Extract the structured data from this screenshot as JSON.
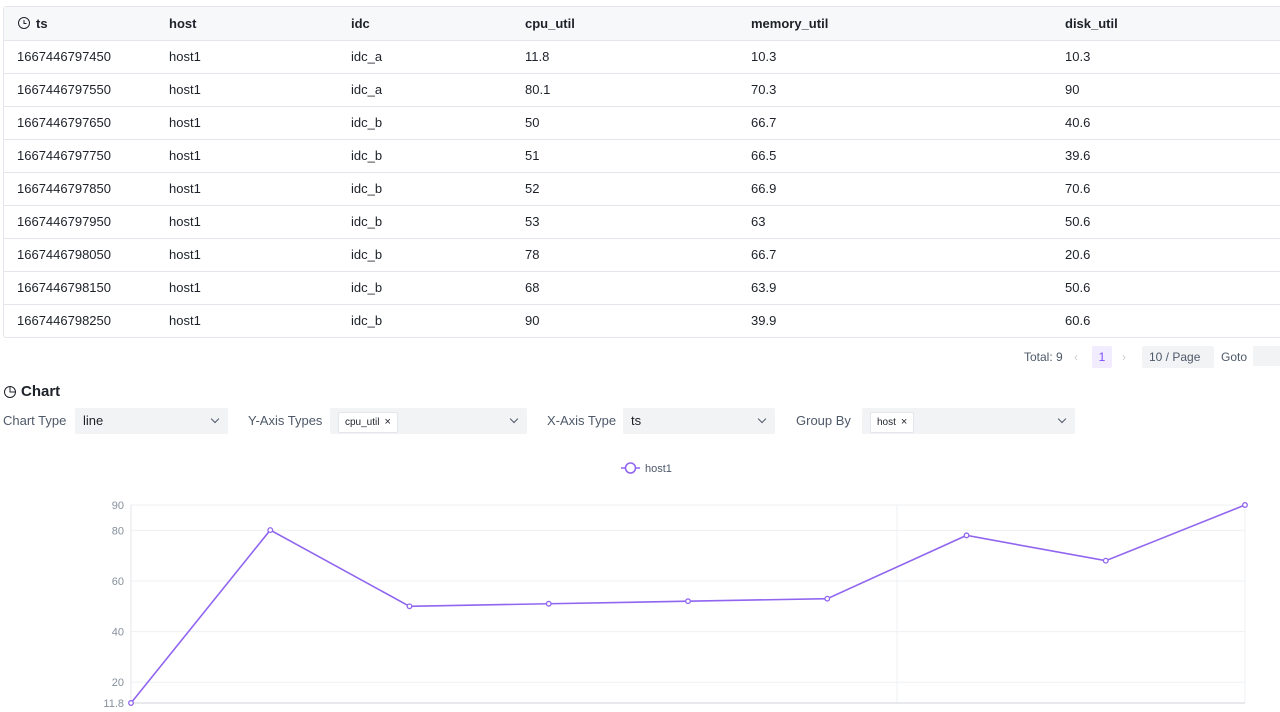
{
  "table": {
    "columns": [
      "ts",
      "host",
      "idc",
      "cpu_util",
      "memory_util",
      "disk_util"
    ],
    "rows": [
      [
        1667446797450,
        "host1",
        "idc_a",
        11.8,
        10.3,
        10.3
      ],
      [
        1667446797550,
        "host1",
        "idc_a",
        80.1,
        70.3,
        90
      ],
      [
        1667446797650,
        "host1",
        "idc_b",
        50,
        66.7,
        40.6
      ],
      [
        1667446797750,
        "host1",
        "idc_b",
        51,
        66.5,
        39.6
      ],
      [
        1667446797850,
        "host1",
        "idc_b",
        52,
        66.9,
        70.6
      ],
      [
        1667446797950,
        "host1",
        "idc_b",
        53,
        63,
        50.6
      ],
      [
        1667446798050,
        "host1",
        "idc_b",
        78,
        66.7,
        20.6
      ],
      [
        1667446798150,
        "host1",
        "idc_b",
        68,
        63.9,
        50.6
      ],
      [
        1667446798250,
        "host1",
        "idc_b",
        90,
        39.9,
        60.6
      ]
    ]
  },
  "pagination": {
    "total": "Total: 9",
    "page": "1",
    "page_size": "10 / Page",
    "goto": "Goto"
  },
  "section_title": "Chart",
  "controls": [
    {
      "label": "Chart Type",
      "value": "line"
    },
    {
      "label": "Y-Axis Types",
      "tag": "cpu_util"
    },
    {
      "label": "X-Axis Type",
      "value": "ts"
    },
    {
      "label": "Group By",
      "tag": "host"
    }
  ],
  "chart_data": {
    "type": "line",
    "series": [
      {
        "name": "host1",
        "color": "#9065f0",
        "values": [
          11.8,
          80.1,
          50,
          51,
          52,
          53,
          78,
          68,
          90
        ]
      }
    ],
    "ylim": [
      11.8,
      90
    ],
    "yticks": [
      11.8,
      20,
      40,
      60,
      80,
      90
    ],
    "grid": true
  }
}
